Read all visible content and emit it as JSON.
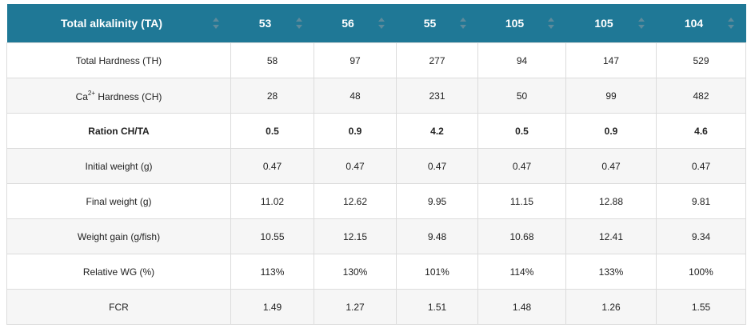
{
  "table": {
    "header": [
      "Total alkalinity (TA)",
      "53",
      "56",
      "55",
      "105",
      "105",
      "104"
    ],
    "rows": [
      [
        "Total Hardness (TH)",
        "58",
        "97",
        "277",
        "94",
        "147",
        "529"
      ],
      [
        {
          "base": "Ca",
          "sup": "2+",
          "rest": " Hardness (CH)"
        },
        "28",
        "48",
        "231",
        "50",
        "99",
        "482"
      ],
      [
        "Ration CH/TA",
        "0.5",
        "0.9",
        "4.2",
        "0.5",
        "0.9",
        "4.6"
      ],
      [
        "Initial weight (g)",
        "0.47",
        "0.47",
        "0.47",
        "0.47",
        "0.47",
        "0.47"
      ],
      [
        "Final weight (g)",
        "11.02",
        "12.62",
        "9.95",
        "11.15",
        "12.88",
        "9.81"
      ],
      [
        "Weight gain (g/fish)",
        "10.55",
        "12.15",
        "9.48",
        "10.68",
        "12.41",
        "9.34"
      ],
      [
        "Relative WG (%)",
        "113%",
        "130%",
        "101%",
        "114%",
        "133%",
        "100%"
      ],
      [
        "FCR",
        "1.49",
        "1.27",
        "1.51",
        "1.48",
        "1.26",
        "1.55"
      ]
    ]
  }
}
